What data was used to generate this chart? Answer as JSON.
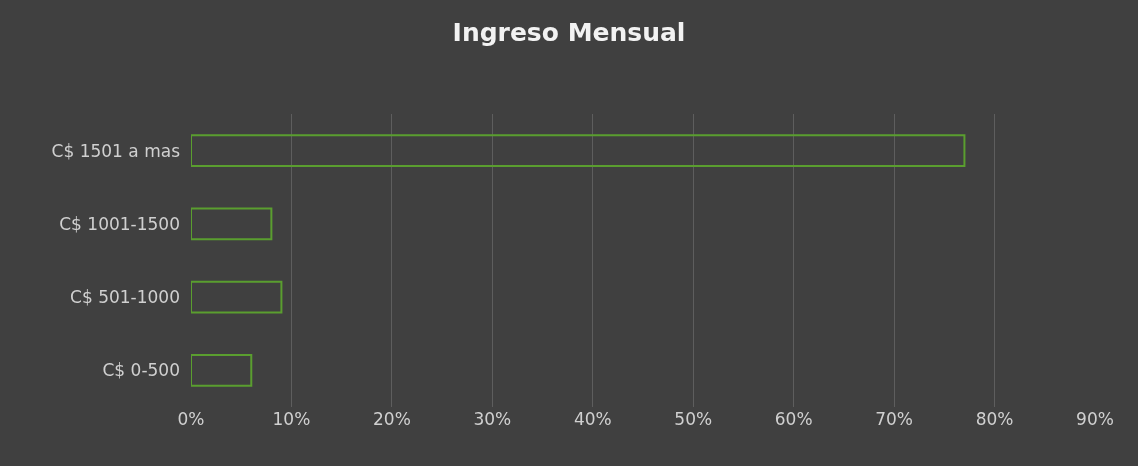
{
  "chart_data": {
    "type": "bar",
    "orientation": "horizontal",
    "title": "Ingreso Mensual",
    "categories": [
      "C$ 1501 a mas",
      "C$ 1001-1500",
      "C$ 501-1000",
      "C$ 0-500"
    ],
    "values": [
      77,
      8,
      9,
      6
    ],
    "color": "#5a9e2f",
    "xlim": [
      0,
      90
    ],
    "xticks": [
      {
        "value": 0,
        "label": "0%"
      },
      {
        "value": 10,
        "label": "10%"
      },
      {
        "value": 20,
        "label": "20%"
      },
      {
        "value": 30,
        "label": "30%"
      },
      {
        "value": 40,
        "label": "40%"
      },
      {
        "value": 50,
        "label": "50%"
      },
      {
        "value": 60,
        "label": "60%"
      },
      {
        "value": 70,
        "label": "70%"
      },
      {
        "value": 80,
        "label": "80%"
      },
      {
        "value": 90,
        "label": "90%"
      }
    ],
    "grid": "x"
  }
}
